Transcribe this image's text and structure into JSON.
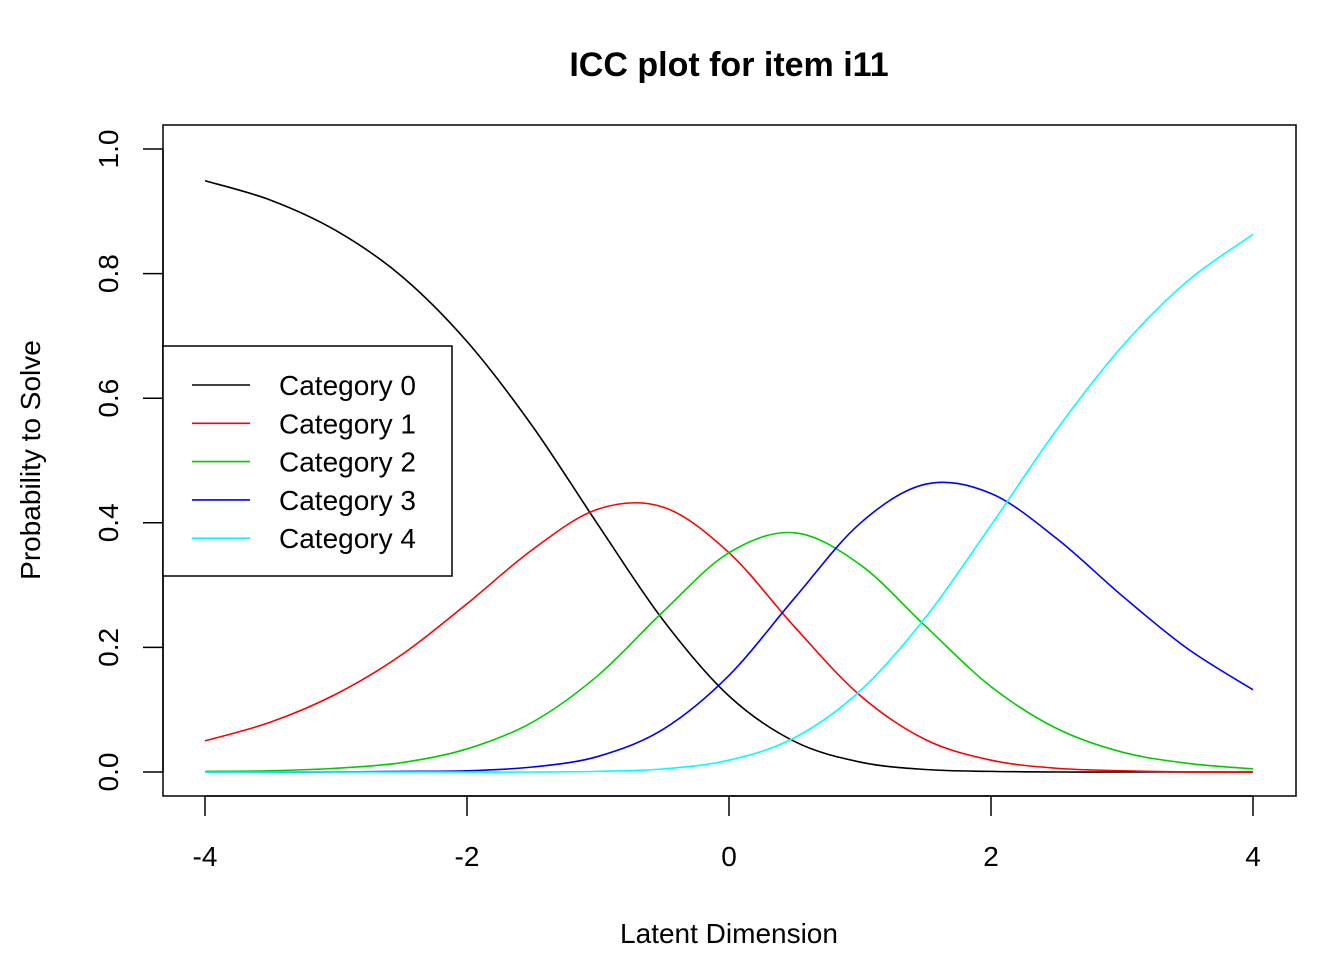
{
  "chart_data": {
    "type": "line",
    "title": "ICC plot for item i11",
    "xlabel": "Latent Dimension",
    "ylabel": "Probability to Solve",
    "xlim": [
      -4,
      4
    ],
    "ylim": [
      0,
      1
    ],
    "xticks": [
      -4,
      -2,
      0,
      2,
      4
    ],
    "yticks": [
      0.0,
      0.2,
      0.4,
      0.6,
      0.8,
      1.0
    ],
    "ytick_labels": [
      "0.0",
      "0.2",
      "0.4",
      "0.6",
      "0.8",
      "1.0"
    ],
    "grid": false,
    "legend_placement": "left",
    "x": [
      -4,
      -3.5,
      -3,
      -2.5,
      -2,
      -1.5,
      -1,
      -0.5,
      0,
      0.5,
      1,
      1.5,
      2,
      2.5,
      3,
      3.5,
      4
    ],
    "series": [
      {
        "name": "Category 0",
        "color": "#000000",
        "values": [
          0.949,
          0.918,
          0.869,
          0.796,
          0.691,
          0.555,
          0.397,
          0.243,
          0.122,
          0.049,
          0.016,
          0.004,
          0.001,
          0,
          0,
          0,
          0
        ]
      },
      {
        "name": "Category 1",
        "color": "#ff0000",
        "values": [
          0.05,
          0.08,
          0.125,
          0.188,
          0.27,
          0.357,
          0.422,
          0.425,
          0.352,
          0.233,
          0.123,
          0.052,
          0.019,
          0.006,
          0.002,
          0,
          0
        ]
      },
      {
        "name": "Category 2",
        "color": "#00cd00",
        "values": [
          0.001,
          0.002,
          0.006,
          0.015,
          0.037,
          0.08,
          0.155,
          0.258,
          0.352,
          0.384,
          0.333,
          0.234,
          0.137,
          0.07,
          0.032,
          0.014,
          0.005
        ]
      },
      {
        "name": "Category 3",
        "color": "#0000ff",
        "values": [
          0,
          0,
          0,
          0.001,
          0.002,
          0.008,
          0.025,
          0.069,
          0.155,
          0.279,
          0.399,
          0.462,
          0.447,
          0.375,
          0.283,
          0.198,
          0.132
        ]
      },
      {
        "name": "Category 4",
        "color": "#00ffff",
        "values": [
          0,
          0,
          0,
          0,
          0,
          0,
          0.001,
          0.005,
          0.019,
          0.055,
          0.13,
          0.248,
          0.396,
          0.549,
          0.683,
          0.788,
          0.863
        ]
      }
    ]
  }
}
